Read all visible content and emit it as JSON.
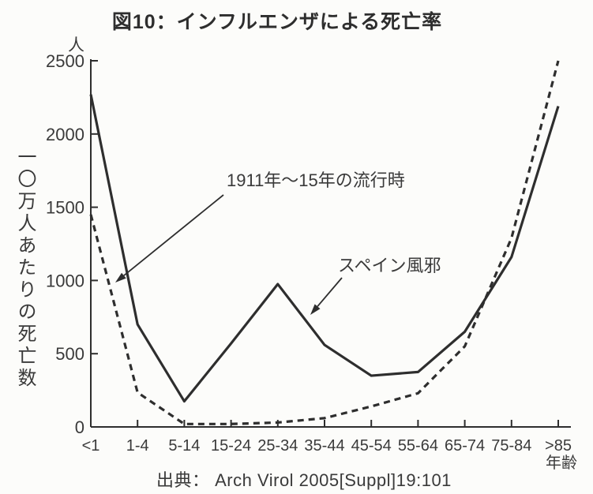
{
  "title": "図10：インフルエンザによる死亡率",
  "axes": {
    "y_unit": "人",
    "y_label": "一〇万人あたりの死亡数",
    "x_label": "年齢"
  },
  "source": "出典： Arch Virol 2005[Suppl]19:101",
  "colors": {
    "ink": "#2e2e2e",
    "text": "#3a3a3a",
    "background": "#fcfcfa"
  },
  "chart_data": {
    "type": "line",
    "title": "図10：インフルエンザによる死亡率",
    "categories": [
      "<1",
      "1-4",
      "5-14",
      "15-24",
      "25-34",
      "35-44",
      "45-54",
      "55-64",
      "65-74",
      "75-84",
      ">85"
    ],
    "xlabel": "年齢",
    "ylabel": "一〇万人あたりの死亡数（人）",
    "ylim": [
      0,
      2500
    ],
    "y_ticks": [
      0,
      500,
      1000,
      1500,
      2000,
      2500
    ],
    "grid": false,
    "legend_position": "inline-annotations",
    "series": [
      {
        "name": "スペイン風邪",
        "line_style": "solid",
        "values": [
          2270,
          700,
          175,
          570,
          975,
          560,
          350,
          375,
          650,
          1160,
          2190
        ]
      },
      {
        "name": "1911年～15年の流行時",
        "line_style": "dashed",
        "values": [
          1450,
          235,
          20,
          20,
          30,
          60,
          140,
          230,
          550,
          1290,
          2500
        ]
      }
    ],
    "annotations": [
      {
        "text": "1911年～15年の流行時",
        "points_to": "dashed"
      },
      {
        "text": "スペイン風邪",
        "points_to": "solid"
      }
    ]
  }
}
